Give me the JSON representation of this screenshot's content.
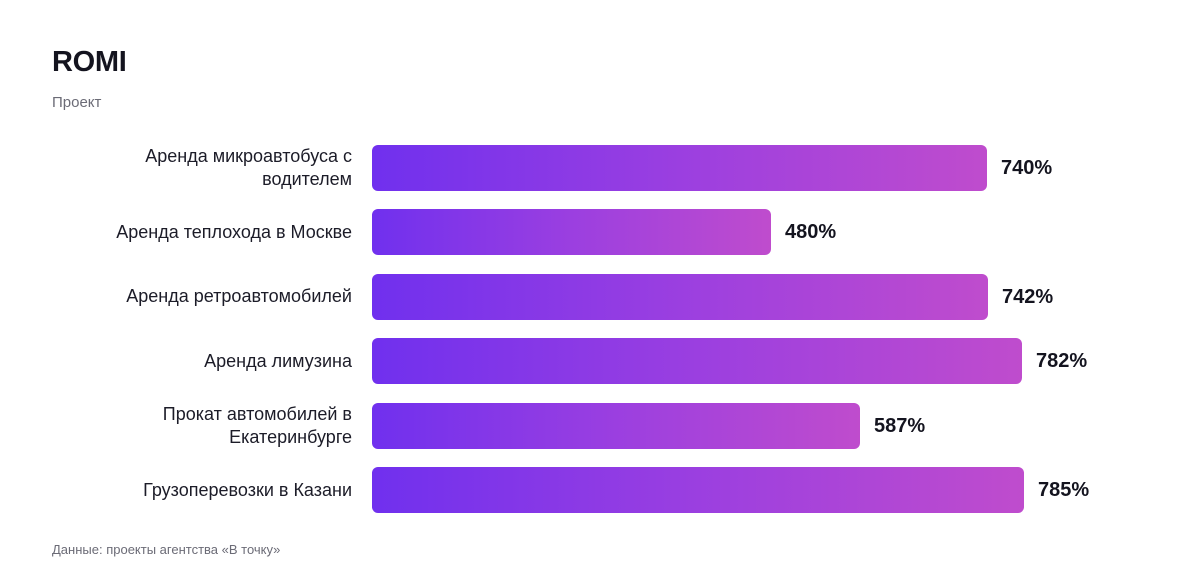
{
  "header": {
    "title": "ROMI",
    "subtitle": "Проект"
  },
  "footer": {
    "source": "Данные: проекты агентства «В точку»"
  },
  "colors": {
    "bar_gradient_start": "#7030ee",
    "bar_gradient_end": "#bf4ccd",
    "text": "#1c1c28",
    "muted_text": "#6b6b76"
  },
  "chart_data": {
    "type": "bar",
    "orientation": "horizontal",
    "title": "ROMI",
    "subtitle": "Проект",
    "categories": [
      "Аренда микроавтобуса с водителем",
      "Аренда теплохода в Москве",
      "Аренда ретроавтомобилей",
      "Аренда лимузина",
      "Прокат автомобилей в Екатеринбурге",
      "Грузоперевозки в Казани"
    ],
    "values": [
      740,
      480,
      742,
      782,
      587,
      785
    ],
    "value_labels": [
      "740%",
      "480%",
      "742%",
      "782%",
      "587%",
      "785%"
    ],
    "unit": "%",
    "grid": false,
    "legend": "none",
    "xlim": [
      0,
      785
    ]
  }
}
